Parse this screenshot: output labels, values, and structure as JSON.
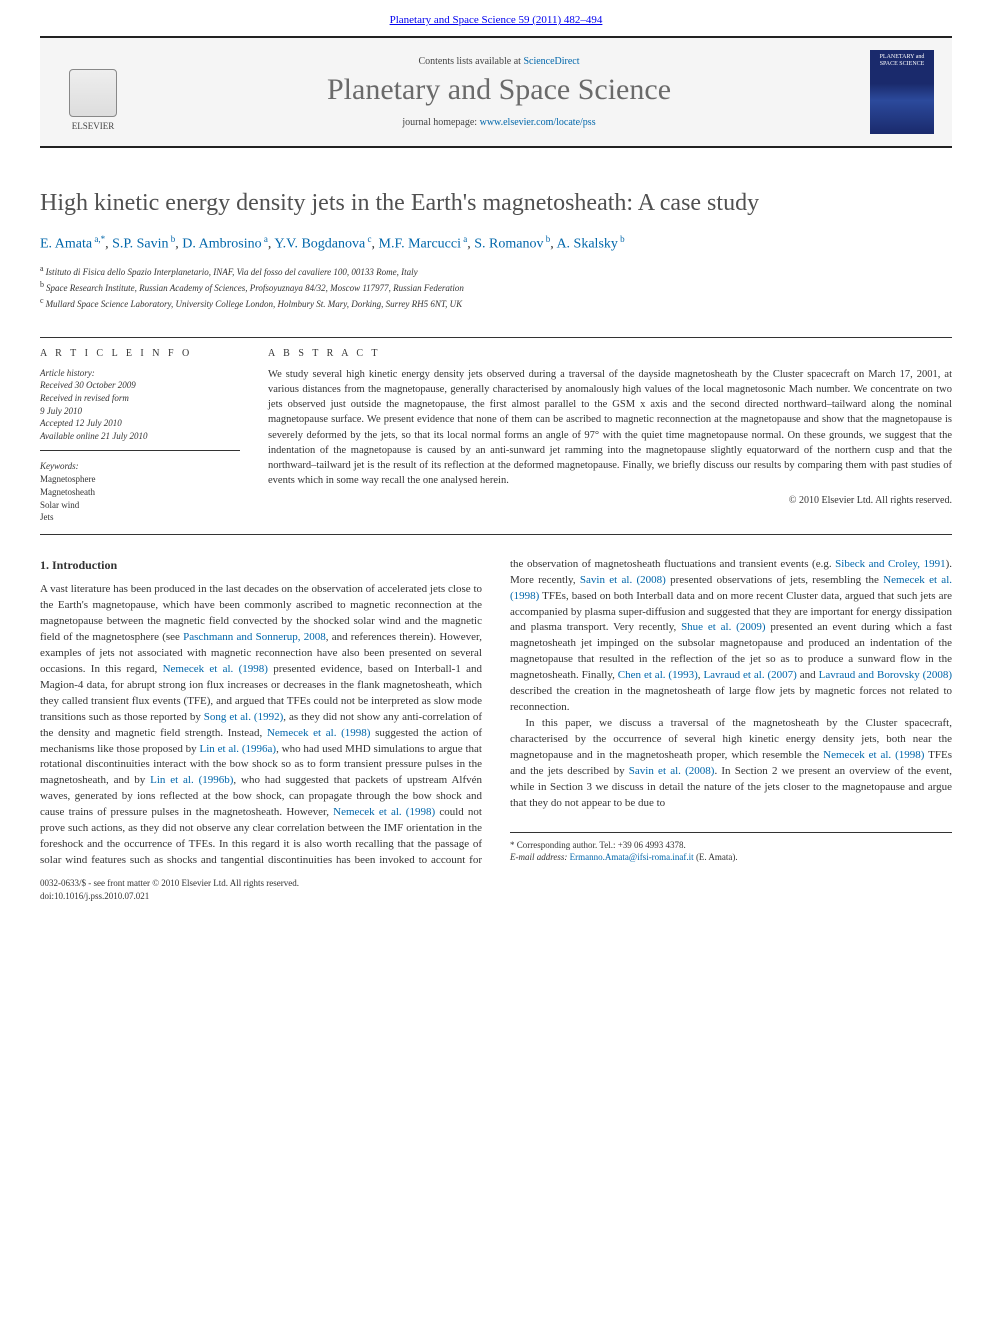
{
  "topbar": {
    "citation": "Planetary and Space Science 59 (2011) 482–494"
  },
  "header": {
    "contents_prefix": "Contents lists available at ",
    "contents_link": "ScienceDirect",
    "journal": "Planetary and Space Science",
    "homepage_prefix": "journal homepage: ",
    "homepage_url": "www.elsevier.com/locate/pss",
    "publisher_logo_label": "ELSEVIER",
    "cover_text": "PLANETARY and SPACE SCIENCE"
  },
  "title": "High kinetic energy density jets in the Earth's magnetosheath: A case study",
  "authors_html": [
    {
      "name": "E. Amata",
      "sup": "a,*"
    },
    {
      "name": "S.P. Savin",
      "sup": "b"
    },
    {
      "name": "D. Ambrosino",
      "sup": "a"
    },
    {
      "name": "Y.V. Bogdanova",
      "sup": "c"
    },
    {
      "name": "M.F. Marcucci",
      "sup": "a"
    },
    {
      "name": "S. Romanov",
      "sup": "b"
    },
    {
      "name": "A. Skalsky",
      "sup": "b"
    }
  ],
  "affiliations": [
    {
      "key": "a",
      "text": "Istituto di Fisica dello Spazio Interplanetario, INAF, Via del fosso del cavaliere 100, 00133 Rome, Italy"
    },
    {
      "key": "b",
      "text": "Space Research Institute, Russian Academy of Sciences, Profsoyuznaya 84/32, Moscow 117977, Russian Federation"
    },
    {
      "key": "c",
      "text": "Mullard Space Science Laboratory, University College London, Holmbury St. Mary, Dorking, Surrey RH5 6NT, UK"
    }
  ],
  "article_info_label": "A R T I C L E   I N F O",
  "abstract_label": "A B S T R A C T",
  "history": {
    "heading": "Article history:",
    "lines": [
      "Received 30 October 2009",
      "Received in revised form",
      "9 July 2010",
      "Accepted 12 July 2010",
      "Available online 21 July 2010"
    ]
  },
  "keywords": {
    "heading": "Keywords:",
    "items": [
      "Magnetosphere",
      "Magnetosheath",
      "Solar wind",
      "Jets"
    ]
  },
  "abstract": "We study several high kinetic energy density jets observed during a traversal of the dayside magnetosheath by the Cluster spacecraft on March 17, 2001, at various distances from the magnetopause, generally characterised by anomalously high values of the local magnetosonic Mach number. We concentrate on two jets observed just outside the magnetopause, the first almost parallel to the GSM x axis and the second directed northward–tailward along the nominal magnetopause surface. We present evidence that none of them can be ascribed to magnetic reconnection at the magnetopause and show that the magnetopause is severely deformed by the jets, so that its local normal forms an angle of 97° with the quiet time magnetopause normal. On these grounds, we suggest that the indentation of the magnetopause is caused by an anti-sunward jet ramming into the magnetopause slightly equatorward of the northern cusp and that the northward–tailward jet is the result of its reflection at the deformed magnetopause. Finally, we briefly discuss our results by comparing them with past studies of events which in some way recall the one analysed herein.",
  "copyright": "© 2010 Elsevier Ltd. All rights reserved.",
  "section1": {
    "heading": "1. Introduction",
    "p1_pre": "A vast literature has been produced in the last decades on the observation of accelerated jets close to the Earth's magnetopause, which have been commonly ascribed to magnetic reconnection at the magnetopause between the magnetic field convected by the shocked solar wind and the magnetic field of the magnetosphere (see ",
    "p1_ref1": "Paschmann and Sonnerup, 2008",
    "p1_mid1": ", and references therein). However, examples of jets not associated with magnetic reconnection have also been presented on several occasions. In this regard, ",
    "p1_ref2": "Nemecek et al. (1998)",
    "p1_mid2": " presented evidence, based on Interball-1 and Magion-4 data, for abrupt strong ion flux increases or decreases in the flank magnetosheath, which they called transient flux events (TFE), and argued that TFEs could not be interpreted as slow mode transitions such as those reported by ",
    "p1_ref3": "Song et al. (1992)",
    "p1_mid3": ", as they did not show any anti-correlation of the density and magnetic field strength. Instead, ",
    "p1_ref4": "Nemecek et al. (1998)",
    "p1_mid4": " suggested the action of mechanisms like those proposed by ",
    "p1_ref5": "Lin et al. (1996a)",
    "p1_mid5": ", who had used MHD simulations to argue that rotational discontinuities interact with the bow shock so as to form transient pressure pulses in the magnetosheath, and by ",
    "p1_ref6": "Lin et al. (1996b)",
    "p1_mid6": ", who had suggested that packets of upstream Alfvén waves, generated by ions reflected at the bow shock, can propagate through the bow shock and cause trains of pressure ",
    "p1_col2_a": "pulses in the magnetosheath. However, ",
    "p1_ref7": "Nemecek et al. (1998)",
    "p1_col2_b": " could not prove such actions, as they did not observe any clear correlation between the IMF orientation in the foreshock and the occurrence of TFEs. In this regard it is also worth recalling that the passage of solar wind features such as shocks and tangential discontinuities has been invoked to account for the observation of magnetosheath fluctuations and transient events (e.g. ",
    "p1_ref8": "Sibeck and Croley, 1991",
    "p1_col2_c": "). More recently, ",
    "p1_ref9": "Savin et al. (2008)",
    "p1_col2_d": " presented observations of jets, resembling the ",
    "p1_ref10": "Nemecek et al. (1998)",
    "p1_col2_e": " TFEs, based on both Interball data and on more recent Cluster data, argued that such jets are accompanied by plasma super-diffusion and suggested that they are important for energy dissipation and plasma transport. Very recently, ",
    "p1_ref11": "Shue et al. (2009)",
    "p1_col2_f": " presented an event during which a fast magnetosheath jet impinged on the subsolar magnetopause and produced an indentation of the magnetopause that resulted in the reflection of the jet so as to produce a sunward flow in the magnetosheath. Finally, ",
    "p1_ref12": "Chen et al. (1993)",
    "p1_col2_g": ", ",
    "p1_ref13": "Lavraud et al. (2007)",
    "p1_col2_h": " and ",
    "p1_ref14": "Lavraud and Borovsky (2008)",
    "p1_col2_i": " described the creation in the magnetosheath of large flow jets by magnetic forces not related to reconnection.",
    "p2_a": "In this paper, we discuss a traversal of the magnetosheath by the Cluster spacecraft, characterised by the occurrence of several high kinetic energy density jets, both near the magnetopause and in the magnetosheath proper, which resemble the ",
    "p2_ref1": "Nemecek et al. (1998)",
    "p2_b": " TFEs and the jets described by ",
    "p2_ref2": "Savin et al. (2008)",
    "p2_c": ". In Section 2 we present an overview of the event, while in Section 3 we discuss in detail the nature of the jets closer to the magnetopause and argue that they do not appear to be due to"
  },
  "footnote": {
    "corresp": "* Corresponding author. Tel.: +39 06 4993 4378.",
    "email_label": "E-mail address:",
    "email": "Ermanno.Amata@ifsi-roma.inaf.it",
    "email_suffix": "(E. Amata)."
  },
  "bottom": {
    "issn": "0032-0633/$ - see front matter © 2010 Elsevier Ltd. All rights reserved.",
    "doi": "doi:10.1016/j.pss.2010.07.021"
  },
  "colors": {
    "link": "#0066aa",
    "text": "#333333",
    "title_gray": "#505050",
    "journal_gray": "#6a6a6a",
    "rule": "#222222"
  }
}
